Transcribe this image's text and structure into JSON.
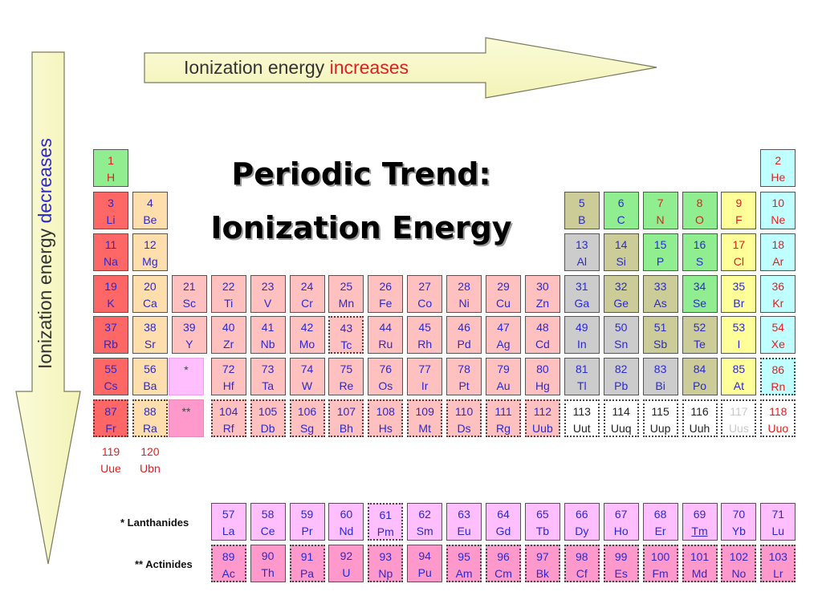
{
  "title": {
    "line1": "Periodic Trend:",
    "line2": "Ionization Energy"
  },
  "horizontal_arrow": {
    "text": "Ionization energy",
    "highlight": "increases",
    "highlight_color": "#e02020"
  },
  "vertical_arrow": {
    "text": "Ionization energy",
    "highlight": "decreases",
    "highlight_color": "#2a2ad0"
  },
  "series_labels": {
    "lanthanides": "* Lanthanides",
    "actinides": "** Actinides"
  },
  "placeholders": {
    "lanthanide_marker": "*",
    "actinide_marker": "**"
  },
  "colors": {
    "nonmetal": "#90ee90",
    "noble": "#c0ffff",
    "alkali": "#ff6666",
    "alkaline": "#ffdead",
    "transition": "#ffc0c0",
    "metalloid": "#cccc99",
    "poor_metal": "#cccccc",
    "halogen": "#ffff99",
    "lanthanide": "#ffbfff",
    "actinide": "#ff99cc",
    "text_solid": "#2a2ad0",
    "text_gas": "#e02020",
    "text_liquid": "#2a2ad0"
  },
  "elements": [
    {
      "n": "1",
      "s": "H",
      "g": 1,
      "p": 1,
      "c": "nonmetal",
      "t": "gas"
    },
    {
      "n": "2",
      "s": "He",
      "g": 18,
      "p": 1,
      "c": "noble",
      "t": "gas"
    },
    {
      "n": "3",
      "s": "Li",
      "g": 1,
      "p": 2,
      "c": "alkali",
      "t": "solid"
    },
    {
      "n": "4",
      "s": "Be",
      "g": 2,
      "p": 2,
      "c": "alkaline",
      "t": "solid"
    },
    {
      "n": "5",
      "s": "B",
      "g": 13,
      "p": 2,
      "c": "metalloid",
      "t": "solid"
    },
    {
      "n": "6",
      "s": "C",
      "g": 14,
      "p": 2,
      "c": "nonmetal",
      "t": "solid"
    },
    {
      "n": "7",
      "s": "N",
      "g": 15,
      "p": 2,
      "c": "nonmetal",
      "t": "gas"
    },
    {
      "n": "8",
      "s": "O",
      "g": 16,
      "p": 2,
      "c": "nonmetal",
      "t": "gas"
    },
    {
      "n": "9",
      "s": "F",
      "g": 17,
      "p": 2,
      "c": "halogen",
      "t": "gas"
    },
    {
      "n": "10",
      "s": "Ne",
      "g": 18,
      "p": 2,
      "c": "noble",
      "t": "gas"
    },
    {
      "n": "11",
      "s": "Na",
      "g": 1,
      "p": 3,
      "c": "alkali",
      "t": "solid"
    },
    {
      "n": "12",
      "s": "Mg",
      "g": 2,
      "p": 3,
      "c": "alkaline",
      "t": "solid"
    },
    {
      "n": "13",
      "s": "Al",
      "g": 13,
      "p": 3,
      "c": "poor_metal",
      "t": "solid"
    },
    {
      "n": "14",
      "s": "Si",
      "g": 14,
      "p": 3,
      "c": "metalloid",
      "t": "solid"
    },
    {
      "n": "15",
      "s": "P",
      "g": 15,
      "p": 3,
      "c": "nonmetal",
      "t": "solid"
    },
    {
      "n": "16",
      "s": "S",
      "g": 16,
      "p": 3,
      "c": "nonmetal",
      "t": "solid"
    },
    {
      "n": "17",
      "s": "Cl",
      "g": 17,
      "p": 3,
      "c": "halogen",
      "t": "gas"
    },
    {
      "n": "18",
      "s": "Ar",
      "g": 18,
      "p": 3,
      "c": "noble",
      "t": "gas"
    },
    {
      "n": "19",
      "s": "K",
      "g": 1,
      "p": 4,
      "c": "alkali",
      "t": "solid"
    },
    {
      "n": "20",
      "s": "Ca",
      "g": 2,
      "p": 4,
      "c": "alkaline",
      "t": "solid"
    },
    {
      "n": "21",
      "s": "Sc",
      "g": 3,
      "p": 4,
      "c": "transition",
      "t": "solid"
    },
    {
      "n": "22",
      "s": "Ti",
      "g": 4,
      "p": 4,
      "c": "transition",
      "t": "solid"
    },
    {
      "n": "23",
      "s": "V",
      "g": 5,
      "p": 4,
      "c": "transition",
      "t": "solid"
    },
    {
      "n": "24",
      "s": "Cr",
      "g": 6,
      "p": 4,
      "c": "transition",
      "t": "solid"
    },
    {
      "n": "25",
      "s": "Mn",
      "g": 7,
      "p": 4,
      "c": "transition",
      "t": "solid"
    },
    {
      "n": "26",
      "s": "Fe",
      "g": 8,
      "p": 4,
      "c": "transition",
      "t": "solid"
    },
    {
      "n": "27",
      "s": "Co",
      "g": 9,
      "p": 4,
      "c": "transition",
      "t": "solid"
    },
    {
      "n": "28",
      "s": "Ni",
      "g": 10,
      "p": 4,
      "c": "transition",
      "t": "solid"
    },
    {
      "n": "29",
      "s": "Cu",
      "g": 11,
      "p": 4,
      "c": "transition",
      "t": "solid"
    },
    {
      "n": "30",
      "s": "Zn",
      "g": 12,
      "p": 4,
      "c": "transition",
      "t": "solid"
    },
    {
      "n": "31",
      "s": "Ga",
      "g": 13,
      "p": 4,
      "c": "poor_metal",
      "t": "solid"
    },
    {
      "n": "32",
      "s": "Ge",
      "g": 14,
      "p": 4,
      "c": "metalloid",
      "t": "solid"
    },
    {
      "n": "33",
      "s": "As",
      "g": 15,
      "p": 4,
      "c": "metalloid",
      "t": "solid"
    },
    {
      "n": "34",
      "s": "Se",
      "g": 16,
      "p": 4,
      "c": "nonmetal",
      "t": "solid"
    },
    {
      "n": "35",
      "s": "Br",
      "g": 17,
      "p": 4,
      "c": "halogen",
      "t": "liquid"
    },
    {
      "n": "36",
      "s": "Kr",
      "g": 18,
      "p": 4,
      "c": "noble",
      "t": "gas"
    },
    {
      "n": "37",
      "s": "Rb",
      "g": 1,
      "p": 5,
      "c": "alkali",
      "t": "solid"
    },
    {
      "n": "38",
      "s": "Sr",
      "g": 2,
      "p": 5,
      "c": "alkaline",
      "t": "solid"
    },
    {
      "n": "39",
      "s": "Y",
      "g": 3,
      "p": 5,
      "c": "transition",
      "t": "solid"
    },
    {
      "n": "40",
      "s": "Zr",
      "g": 4,
      "p": 5,
      "c": "transition",
      "t": "solid"
    },
    {
      "n": "41",
      "s": "Nb",
      "g": 5,
      "p": 5,
      "c": "transition",
      "t": "solid"
    },
    {
      "n": "42",
      "s": "Mo",
      "g": 6,
      "p": 5,
      "c": "transition",
      "t": "solid"
    },
    {
      "n": "43",
      "s": "Tc",
      "g": 7,
      "p": 5,
      "c": "transition",
      "t": "solid",
      "synthetic": true
    },
    {
      "n": "44",
      "s": "Ru",
      "g": 8,
      "p": 5,
      "c": "transition",
      "t": "solid"
    },
    {
      "n": "45",
      "s": "Rh",
      "g": 9,
      "p": 5,
      "c": "transition",
      "t": "solid"
    },
    {
      "n": "46",
      "s": "Pd",
      "g": 10,
      "p": 5,
      "c": "transition",
      "t": "solid"
    },
    {
      "n": "47",
      "s": "Ag",
      "g": 11,
      "p": 5,
      "c": "transition",
      "t": "solid"
    },
    {
      "n": "48",
      "s": "Cd",
      "g": 12,
      "p": 5,
      "c": "transition",
      "t": "solid"
    },
    {
      "n": "49",
      "s": "In",
      "g": 13,
      "p": 5,
      "c": "poor_metal",
      "t": "solid"
    },
    {
      "n": "50",
      "s": "Sn",
      "g": 14,
      "p": 5,
      "c": "poor_metal",
      "t": "solid"
    },
    {
      "n": "51",
      "s": "Sb",
      "g": 15,
      "p": 5,
      "c": "metalloid",
      "t": "solid"
    },
    {
      "n": "52",
      "s": "Te",
      "g": 16,
      "p": 5,
      "c": "metalloid",
      "t": "solid"
    },
    {
      "n": "53",
      "s": "I",
      "g": 17,
      "p": 5,
      "c": "halogen",
      "t": "solid"
    },
    {
      "n": "54",
      "s": "Xe",
      "g": 18,
      "p": 5,
      "c": "noble",
      "t": "gas"
    },
    {
      "n": "55",
      "s": "Cs",
      "g": 1,
      "p": 6,
      "c": "alkali",
      "t": "solid"
    },
    {
      "n": "56",
      "s": "Ba",
      "g": 2,
      "p": 6,
      "c": "alkaline",
      "t": "solid"
    },
    {
      "n": "72",
      "s": "Hf",
      "g": 4,
      "p": 6,
      "c": "transition",
      "t": "solid"
    },
    {
      "n": "73",
      "s": "Ta",
      "g": 5,
      "p": 6,
      "c": "transition",
      "t": "solid"
    },
    {
      "n": "74",
      "s": "W",
      "g": 6,
      "p": 6,
      "c": "transition",
      "t": "solid"
    },
    {
      "n": "75",
      "s": "Re",
      "g": 7,
      "p": 6,
      "c": "transition",
      "t": "solid"
    },
    {
      "n": "76",
      "s": "Os",
      "g": 8,
      "p": 6,
      "c": "transition",
      "t": "solid"
    },
    {
      "n": "77",
      "s": "Ir",
      "g": 9,
      "p": 6,
      "c": "transition",
      "t": "solid"
    },
    {
      "n": "78",
      "s": "Pt",
      "g": 10,
      "p": 6,
      "c": "transition",
      "t": "solid"
    },
    {
      "n": "79",
      "s": "Au",
      "g": 11,
      "p": 6,
      "c": "transition",
      "t": "solid"
    },
    {
      "n": "80",
      "s": "Hg",
      "g": 12,
      "p": 6,
      "c": "transition",
      "t": "liquid"
    },
    {
      "n": "81",
      "s": "Tl",
      "g": 13,
      "p": 6,
      "c": "poor_metal",
      "t": "solid"
    },
    {
      "n": "82",
      "s": "Pb",
      "g": 14,
      "p": 6,
      "c": "poor_metal",
      "t": "solid"
    },
    {
      "n": "83",
      "s": "Bi",
      "g": 15,
      "p": 6,
      "c": "poor_metal",
      "t": "solid"
    },
    {
      "n": "84",
      "s": "Po",
      "g": 16,
      "p": 6,
      "c": "metalloid",
      "t": "solid"
    },
    {
      "n": "85",
      "s": "At",
      "g": 17,
      "p": 6,
      "c": "halogen",
      "t": "solid"
    },
    {
      "n": "86",
      "s": "Rn",
      "g": 18,
      "p": 6,
      "c": "noble",
      "t": "gas",
      "synthetic": true
    },
    {
      "n": "87",
      "s": "Fr",
      "g": 1,
      "p": 7,
      "c": "alkali",
      "t": "solid",
      "synthetic": true
    },
    {
      "n": "88",
      "s": "Ra",
      "g": 2,
      "p": 7,
      "c": "alkaline",
      "t": "solid",
      "synthetic": true
    },
    {
      "n": "104",
      "s": "Rf",
      "g": 4,
      "p": 7,
      "c": "transition",
      "t": "solid",
      "synthetic": true
    },
    {
      "n": "105",
      "s": "Db",
      "g": 5,
      "p": 7,
      "c": "transition",
      "t": "solid",
      "synthetic": true
    },
    {
      "n": "106",
      "s": "Sg",
      "g": 6,
      "p": 7,
      "c": "transition",
      "t": "solid",
      "synthetic": true
    },
    {
      "n": "107",
      "s": "Bh",
      "g": 7,
      "p": 7,
      "c": "transition",
      "t": "solid",
      "synthetic": true
    },
    {
      "n": "108",
      "s": "Hs",
      "g": 8,
      "p": 7,
      "c": "transition",
      "t": "solid",
      "synthetic": true
    },
    {
      "n": "109",
      "s": "Mt",
      "g": 9,
      "p": 7,
      "c": "transition",
      "t": "solid",
      "synthetic": true
    },
    {
      "n": "110",
      "s": "Ds",
      "g": 10,
      "p": 7,
      "c": "transition",
      "t": "solid",
      "synthetic": true
    },
    {
      "n": "111",
      "s": "Rg",
      "g": 11,
      "p": 7,
      "c": "transition",
      "t": "solid",
      "synthetic": true
    },
    {
      "n": "112",
      "s": "Uub",
      "g": 12,
      "p": 7,
      "c": "transition",
      "t": "liquid",
      "synthetic": true
    },
    {
      "n": "113",
      "s": "Uut",
      "g": 13,
      "p": 7,
      "c": "undiscovered",
      "t": "solid",
      "synthetic": true
    },
    {
      "n": "114",
      "s": "Uuq",
      "g": 14,
      "p": 7,
      "c": "undiscovered",
      "t": "solid",
      "synthetic": true
    },
    {
      "n": "115",
      "s": "Uup",
      "g": 15,
      "p": 7,
      "c": "undiscovered",
      "t": "solid",
      "synthetic": true
    },
    {
      "n": "116",
      "s": "Uuh",
      "g": 16,
      "p": 7,
      "c": "undiscovered",
      "t": "solid",
      "synthetic": true
    },
    {
      "n": "117",
      "s": "Uus",
      "g": 17,
      "p": 7,
      "c": "undiscovered",
      "t": "unknown",
      "synthetic": true
    },
    {
      "n": "118",
      "s": "Uuo",
      "g": 18,
      "p": 7,
      "c": "undiscovered",
      "t": "gas",
      "synthetic": true
    },
    {
      "n": "119",
      "s": "Uue",
      "g": 1,
      "p": 8,
      "c": "none",
      "t": "gas"
    },
    {
      "n": "120",
      "s": "Ubn",
      "g": 2,
      "p": 8,
      "c": "none",
      "t": "gas"
    },
    {
      "n": "57",
      "s": "La",
      "g": 4,
      "p": 9,
      "c": "lanthanide",
      "t": "solid"
    },
    {
      "n": "58",
      "s": "Ce",
      "g": 5,
      "p": 9,
      "c": "lanthanide",
      "t": "solid"
    },
    {
      "n": "59",
      "s": "Pr",
      "g": 6,
      "p": 9,
      "c": "lanthanide",
      "t": "solid"
    },
    {
      "n": "60",
      "s": "Nd",
      "g": 7,
      "p": 9,
      "c": "lanthanide",
      "t": "solid"
    },
    {
      "n": "61",
      "s": "Pm",
      "g": 8,
      "p": 9,
      "c": "lanthanide",
      "t": "solid",
      "synthetic": true
    },
    {
      "n": "62",
      "s": "Sm",
      "g": 9,
      "p": 9,
      "c": "lanthanide",
      "t": "solid"
    },
    {
      "n": "63",
      "s": "Eu",
      "g": 10,
      "p": 9,
      "c": "lanthanide",
      "t": "solid"
    },
    {
      "n": "64",
      "s": "Gd",
      "g": 11,
      "p": 9,
      "c": "lanthanide",
      "t": "solid"
    },
    {
      "n": "65",
      "s": "Tb",
      "g": 12,
      "p": 9,
      "c": "lanthanide",
      "t": "solid"
    },
    {
      "n": "66",
      "s": "Dy",
      "g": 13,
      "p": 9,
      "c": "lanthanide",
      "t": "solid"
    },
    {
      "n": "67",
      "s": "Ho",
      "g": 14,
      "p": 9,
      "c": "lanthanide",
      "t": "solid"
    },
    {
      "n": "68",
      "s": "Er",
      "g": 15,
      "p": 9,
      "c": "lanthanide",
      "t": "solid"
    },
    {
      "n": "69",
      "s": "Tm",
      "g": 16,
      "p": 9,
      "c": "lanthanide",
      "t": "solid",
      "underline": true
    },
    {
      "n": "70",
      "s": "Yb",
      "g": 17,
      "p": 9,
      "c": "lanthanide",
      "t": "solid"
    },
    {
      "n": "71",
      "s": "Lu",
      "g": 18,
      "p": 9,
      "c": "lanthanide",
      "t": "solid"
    },
    {
      "n": "89",
      "s": "Ac",
      "g": 4,
      "p": 10,
      "c": "actinide",
      "t": "solid",
      "synthetic": true
    },
    {
      "n": "90",
      "s": "Th",
      "g": 5,
      "p": 10,
      "c": "actinide",
      "t": "solid"
    },
    {
      "n": "91",
      "s": "Pa",
      "g": 6,
      "p": 10,
      "c": "actinide",
      "t": "solid",
      "synthetic": true
    },
    {
      "n": "92",
      "s": "U",
      "g": 7,
      "p": 10,
      "c": "actinide",
      "t": "solid"
    },
    {
      "n": "93",
      "s": "Np",
      "g": 8,
      "p": 10,
      "c": "actinide",
      "t": "solid",
      "synthetic": true
    },
    {
      "n": "94",
      "s": "Pu",
      "g": 9,
      "p": 10,
      "c": "actinide",
      "t": "solid"
    },
    {
      "n": "95",
      "s": "Am",
      "g": 10,
      "p": 10,
      "c": "actinide",
      "t": "solid",
      "synthetic": true
    },
    {
      "n": "96",
      "s": "Cm",
      "g": 11,
      "p": 10,
      "c": "actinide",
      "t": "solid",
      "synthetic": true
    },
    {
      "n": "97",
      "s": "Bk",
      "g": 12,
      "p": 10,
      "c": "actinide",
      "t": "solid",
      "synthetic": true
    },
    {
      "n": "98",
      "s": "Cf",
      "g": 13,
      "p": 10,
      "c": "actinide",
      "t": "solid",
      "synthetic": true
    },
    {
      "n": "99",
      "s": "Es",
      "g": 14,
      "p": 10,
      "c": "actinide",
      "t": "solid",
      "synthetic": true
    },
    {
      "n": "100",
      "s": "Fm",
      "g": 15,
      "p": 10,
      "c": "actinide",
      "t": "solid",
      "synthetic": true
    },
    {
      "n": "101",
      "s": "Md",
      "g": 16,
      "p": 10,
      "c": "actinide",
      "t": "solid",
      "synthetic": true
    },
    {
      "n": "102",
      "s": "No",
      "g": 17,
      "p": 10,
      "c": "actinide",
      "t": "solid",
      "synthetic": true
    },
    {
      "n": "103",
      "s": "Lr",
      "g": 18,
      "p": 10,
      "c": "actinide",
      "t": "solid",
      "synthetic": true
    }
  ]
}
